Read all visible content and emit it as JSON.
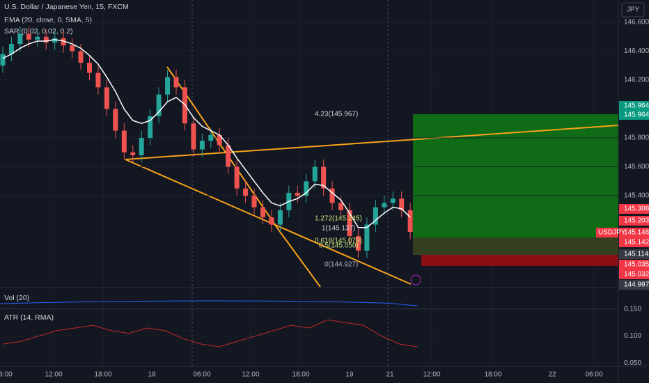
{
  "header": {
    "symbol": "U.S. Dollar / Japanese Yen, 15, FXCM",
    "ema": "EMA (20, close, 0, SMA, 5)",
    "sar": "SAR (0.02, 0.02, 0.2)",
    "currency": "JPY"
  },
  "chart_data": {
    "type": "candlestick",
    "open": [
      146.3,
      146.38,
      146.45,
      146.52,
      146.48,
      146.5,
      146.46,
      146.49,
      146.44,
      146.4,
      146.32,
      146.25,
      146.15,
      146.0,
      145.85,
      145.7,
      145.68,
      145.8,
      145.95,
      146.1,
      146.22,
      146.15,
      145.9,
      145.72,
      145.78,
      145.82,
      145.75,
      145.6,
      145.45,
      145.4,
      145.32,
      145.25,
      145.2,
      145.3,
      145.42,
      145.4,
      145.5,
      145.6,
      145.45,
      145.35,
      145.3,
      145.12,
      145.02,
      145.2,
      145.32,
      145.35,
      145.38,
      145.3
    ],
    "high": [
      146.43,
      146.5,
      146.57,
      146.57,
      146.55,
      146.55,
      146.54,
      146.54,
      146.49,
      146.45,
      146.37,
      146.3,
      146.2,
      146.05,
      145.9,
      145.75,
      145.85,
      146.0,
      146.15,
      146.27,
      146.27,
      146.2,
      145.95,
      145.83,
      145.87,
      145.87,
      145.8,
      145.65,
      145.5,
      145.45,
      145.37,
      145.3,
      145.35,
      145.47,
      145.47,
      145.55,
      145.65,
      145.65,
      145.5,
      145.4,
      145.35,
      145.17,
      145.25,
      145.37,
      145.4,
      145.43,
      145.43,
      145.35
    ],
    "low": [
      146.25,
      146.33,
      146.4,
      146.43,
      146.43,
      146.41,
      146.41,
      146.39,
      146.35,
      146.27,
      146.2,
      146.1,
      145.95,
      145.8,
      145.65,
      145.63,
      145.63,
      145.75,
      145.9,
      146.05,
      146.1,
      145.85,
      145.67,
      145.67,
      145.73,
      145.7,
      145.55,
      145.4,
      145.35,
      145.27,
      145.2,
      145.15,
      145.15,
      145.25,
      145.35,
      145.35,
      145.45,
      145.4,
      145.3,
      145.25,
      145.07,
      144.97,
      144.97,
      145.15,
      145.27,
      145.3,
      145.25,
      145.1
    ],
    "close": [
      146.38,
      146.45,
      146.52,
      146.48,
      146.5,
      146.46,
      146.49,
      146.44,
      146.4,
      146.32,
      146.25,
      146.15,
      146.0,
      145.85,
      145.7,
      145.68,
      145.8,
      145.95,
      146.1,
      146.22,
      146.15,
      145.9,
      145.72,
      145.78,
      145.82,
      145.75,
      145.6,
      145.45,
      145.4,
      145.32,
      145.25,
      145.2,
      145.3,
      145.42,
      145.4,
      145.5,
      145.6,
      145.45,
      145.35,
      145.3,
      145.12,
      145.02,
      145.2,
      145.32,
      145.35,
      145.38,
      145.3,
      145.15
    ],
    "ema": [
      146.35,
      146.38,
      146.42,
      146.45,
      146.47,
      146.47,
      146.48,
      146.47,
      146.45,
      146.42,
      146.37,
      146.31,
      146.22,
      146.12,
      146.0,
      145.92,
      145.9,
      145.92,
      145.98,
      146.05,
      146.08,
      146.03,
      145.94,
      145.88,
      145.85,
      145.82,
      145.75,
      145.66,
      145.58,
      145.5,
      145.42,
      145.35,
      145.33,
      145.36,
      145.38,
      145.42,
      145.48,
      145.47,
      145.42,
      145.37,
      145.28,
      145.18,
      145.18,
      145.23,
      145.28,
      145.32,
      145.31,
      145.25
    ],
    "ylim": [
      144.769,
      146.754
    ],
    "yticks": [
      {
        "value": 146.6,
        "label": "146.600"
      },
      {
        "value": 146.4,
        "label": "146.400"
      },
      {
        "value": 146.2,
        "label": "146.200"
      },
      {
        "value": 145.8,
        "label": "145.800"
      },
      {
        "value": 145.6,
        "label": "145.600"
      },
      {
        "value": 145.4,
        "label": "145.400"
      }
    ],
    "time_labels": [
      "6:00",
      "12:00",
      "18:00",
      "18",
      "06:00",
      "12:00",
      "18:00",
      "19",
      "21",
      "12:00",
      "18:00",
      "22",
      "06:00"
    ]
  },
  "price_labels": [
    "145.964",
    "145.964",
    "145.308",
    "145.203",
    "145.148",
    "145.142",
    "145.114",
    "145.035",
    "145.032",
    "144.997"
  ],
  "symbol_tag": "USDJPY",
  "fib_labels": [
    "4.23(145.967)",
    "1.272(145.245)",
    "1(145.137)",
    "0.618(145.079)",
    "0.5(145.050)",
    "0(144.927)"
  ],
  "volume": {
    "title": "Vol (20)"
  },
  "atr": {
    "title": "ATR (14, RMA)",
    "values": [
      0.085,
      0.09,
      0.1,
      0.11,
      0.115,
      0.12,
      0.11,
      0.105,
      0.115,
      0.11,
      0.095,
      0.085,
      0.08,
      0.09,
      0.1,
      0.11,
      0.12,
      0.115,
      0.13,
      0.125,
      0.12,
      0.1,
      0.085,
      0.08
    ],
    "ylim": [
      0.045,
      0.15
    ],
    "yticks": [
      {
        "value": 0.15,
        "label": "0.150"
      },
      {
        "value": 0.1,
        "label": "0.100"
      },
      {
        "value": 0.05,
        "label": "0.050"
      }
    ]
  }
}
